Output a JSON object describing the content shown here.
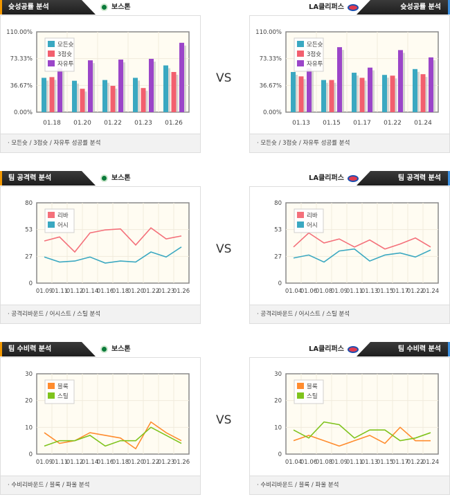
{
  "sections": [
    {
      "tab": "슛성공률 분석",
      "left_team": "보스톤",
      "right_team": "LA클리퍼스",
      "footer": "모든슛 / 3점슛 / 자유투 성공률 분석",
      "vs": "VS"
    },
    {
      "tab": "팀 공격력 분석",
      "left_team": "보스톤",
      "right_team": "LA클리퍼스",
      "footer": "공격리바운드 / 어시스트 / 스틸 분석",
      "vs": "VS"
    },
    {
      "tab": "팀 수비력 분석",
      "left_team": "보스톤",
      "right_team": "LA클리퍼스",
      "footer": "수비리바운드 / 블록 / 파울 분석",
      "vs": "VS"
    }
  ],
  "logos": {
    "boston": "celtics-logo",
    "clippers": "clippers-logo"
  },
  "chart_data": [
    {
      "type": "bar",
      "team": "보스톤",
      "categories": [
        "01.18",
        "01.20",
        "01.22",
        "01.23",
        "01.26"
      ],
      "yticks": [
        "0.00%",
        "36.67%",
        "73.33%",
        "110.00%"
      ],
      "ylim": [
        0,
        110
      ],
      "series": [
        {
          "name": "모든슛",
          "color": "#3aa8c1",
          "values": [
            47,
            43,
            44,
            47,
            64
          ]
        },
        {
          "name": "3점슛",
          "color": "#f25f6e",
          "values": [
            48,
            32,
            36,
            33,
            55
          ]
        },
        {
          "name": "자유투",
          "color": "#9b45c9",
          "values": [
            60,
            71,
            72,
            73,
            95
          ]
        }
      ],
      "legend": "top-left",
      "grid": true
    },
    {
      "type": "bar",
      "team": "LA클리퍼스",
      "categories": [
        "01.13",
        "01.15",
        "01.17",
        "01.22",
        "01.24"
      ],
      "yticks": [
        "0.00%",
        "36.67%",
        "73.33%",
        "110.00%"
      ],
      "ylim": [
        0,
        110
      ],
      "series": [
        {
          "name": "모든슛",
          "color": "#3aa8c1",
          "values": [
            55,
            44,
            54,
            51,
            59
          ]
        },
        {
          "name": "3점슛",
          "color": "#f25f6e",
          "values": [
            49,
            44,
            47,
            50,
            52
          ]
        },
        {
          "name": "자유투",
          "color": "#9b45c9",
          "values": [
            60,
            89,
            61,
            85,
            75
          ]
        }
      ],
      "legend": "top-left",
      "grid": true
    },
    {
      "type": "line",
      "team": "보스톤",
      "categories": [
        "01.09",
        "01.11",
        "01.12",
        "01.14",
        "01.16",
        "01.18",
        "01.20",
        "01.22",
        "01.23",
        "01.26"
      ],
      "yticks": [
        "0",
        "27",
        "53",
        "80"
      ],
      "ylim": [
        0,
        80
      ],
      "series": [
        {
          "name": "리바",
          "color": "#f4707a",
          "values": [
            42,
            46,
            31,
            50,
            53,
            54,
            38,
            55,
            44,
            47
          ]
        },
        {
          "name": "어시",
          "color": "#3aa8c1",
          "values": [
            26,
            21,
            22,
            26,
            20,
            22,
            21,
            31,
            26,
            36
          ]
        }
      ],
      "legend": "top-left",
      "grid": true
    },
    {
      "type": "line",
      "team": "LA클리퍼스",
      "categories": [
        "01.04",
        "01.06",
        "01.08",
        "01.09",
        "01.11",
        "01.13",
        "01.15",
        "01.17",
        "01.22",
        "01.24"
      ],
      "yticks": [
        "0",
        "27",
        "53",
        "80"
      ],
      "ylim": [
        0,
        80
      ],
      "series": [
        {
          "name": "리바",
          "color": "#f4707a",
          "values": [
            36,
            50,
            40,
            44,
            36,
            43,
            34,
            39,
            45,
            36
          ]
        },
        {
          "name": "어시",
          "color": "#3aa8c1",
          "values": [
            25,
            28,
            21,
            32,
            34,
            22,
            28,
            30,
            26,
            33
          ]
        }
      ],
      "legend": "top-left",
      "grid": true
    },
    {
      "type": "line",
      "team": "보스톤",
      "categories": [
        "01.09",
        "01.11",
        "01.12",
        "01.14",
        "01.16",
        "01.18",
        "01.20",
        "01.22",
        "01.23",
        "01.26"
      ],
      "yticks": [
        "0",
        "10",
        "20",
        "30"
      ],
      "ylim": [
        0,
        30
      ],
      "series": [
        {
          "name": "블록",
          "color": "#ff8c2e",
          "values": [
            8,
            4,
            5,
            8,
            7,
            6,
            2,
            12,
            8,
            5
          ]
        },
        {
          "name": "스틸",
          "color": "#7fc31c",
          "values": [
            3,
            5,
            5,
            7,
            3,
            5,
            5,
            10,
            7,
            4
          ]
        }
      ],
      "legend": "top-left",
      "grid": true
    },
    {
      "type": "line",
      "team": "LA클리퍼스",
      "categories": [
        "01.04",
        "01.06",
        "01.08",
        "01.09",
        "01.11",
        "01.13",
        "01.15",
        "01.17",
        "01.22",
        "01.24"
      ],
      "yticks": [
        "0",
        "10",
        "20",
        "30"
      ],
      "ylim": [
        0,
        30
      ],
      "series": [
        {
          "name": "블록",
          "color": "#ff8c2e",
          "values": [
            5,
            7,
            5,
            3,
            5,
            7,
            4,
            10,
            5,
            5
          ]
        },
        {
          "name": "스틸",
          "color": "#7fc31c",
          "values": [
            9,
            6,
            12,
            11,
            6,
            9,
            9,
            5,
            6,
            8
          ]
        }
      ],
      "legend": "top-left",
      "grid": true
    }
  ]
}
